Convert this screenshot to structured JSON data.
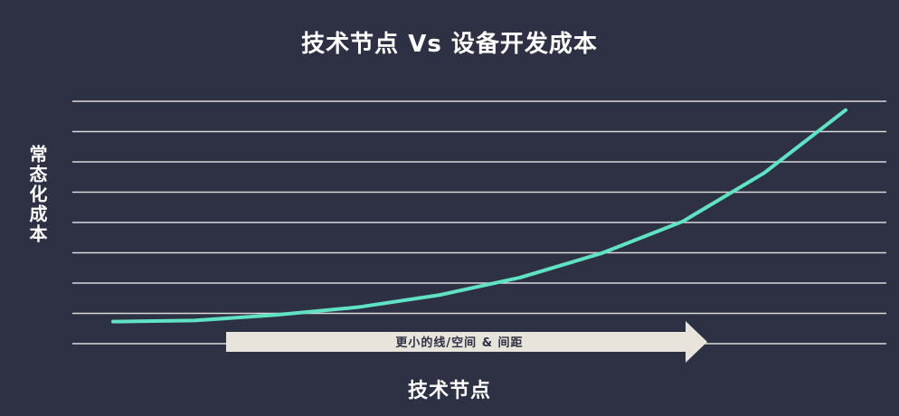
{
  "chart_data": {
    "type": "line",
    "title": "技术节点 Vs 设备开发成本",
    "xlabel": "技术节点",
    "ylabel": "常态化成本",
    "x": [
      1,
      2,
      3,
      4,
      5,
      6,
      7,
      8,
      9,
      10
    ],
    "series": [
      {
        "values": [
          0.0,
          0.05,
          0.3,
          0.65,
          1.2,
          2.0,
          3.1,
          4.55,
          6.75,
          9.6
        ]
      }
    ],
    "ylim": [
      -1,
      10
    ],
    "xlim": [
      0.5,
      10.5
    ],
    "grid": true,
    "colors": {
      "background": "#2e3043",
      "line": "#5fe3c4",
      "grid": "#d9d9d9",
      "text": "#ffffff",
      "arrow": "#e8e4dc"
    },
    "annotation": "更小的线/空间 & 间距"
  }
}
